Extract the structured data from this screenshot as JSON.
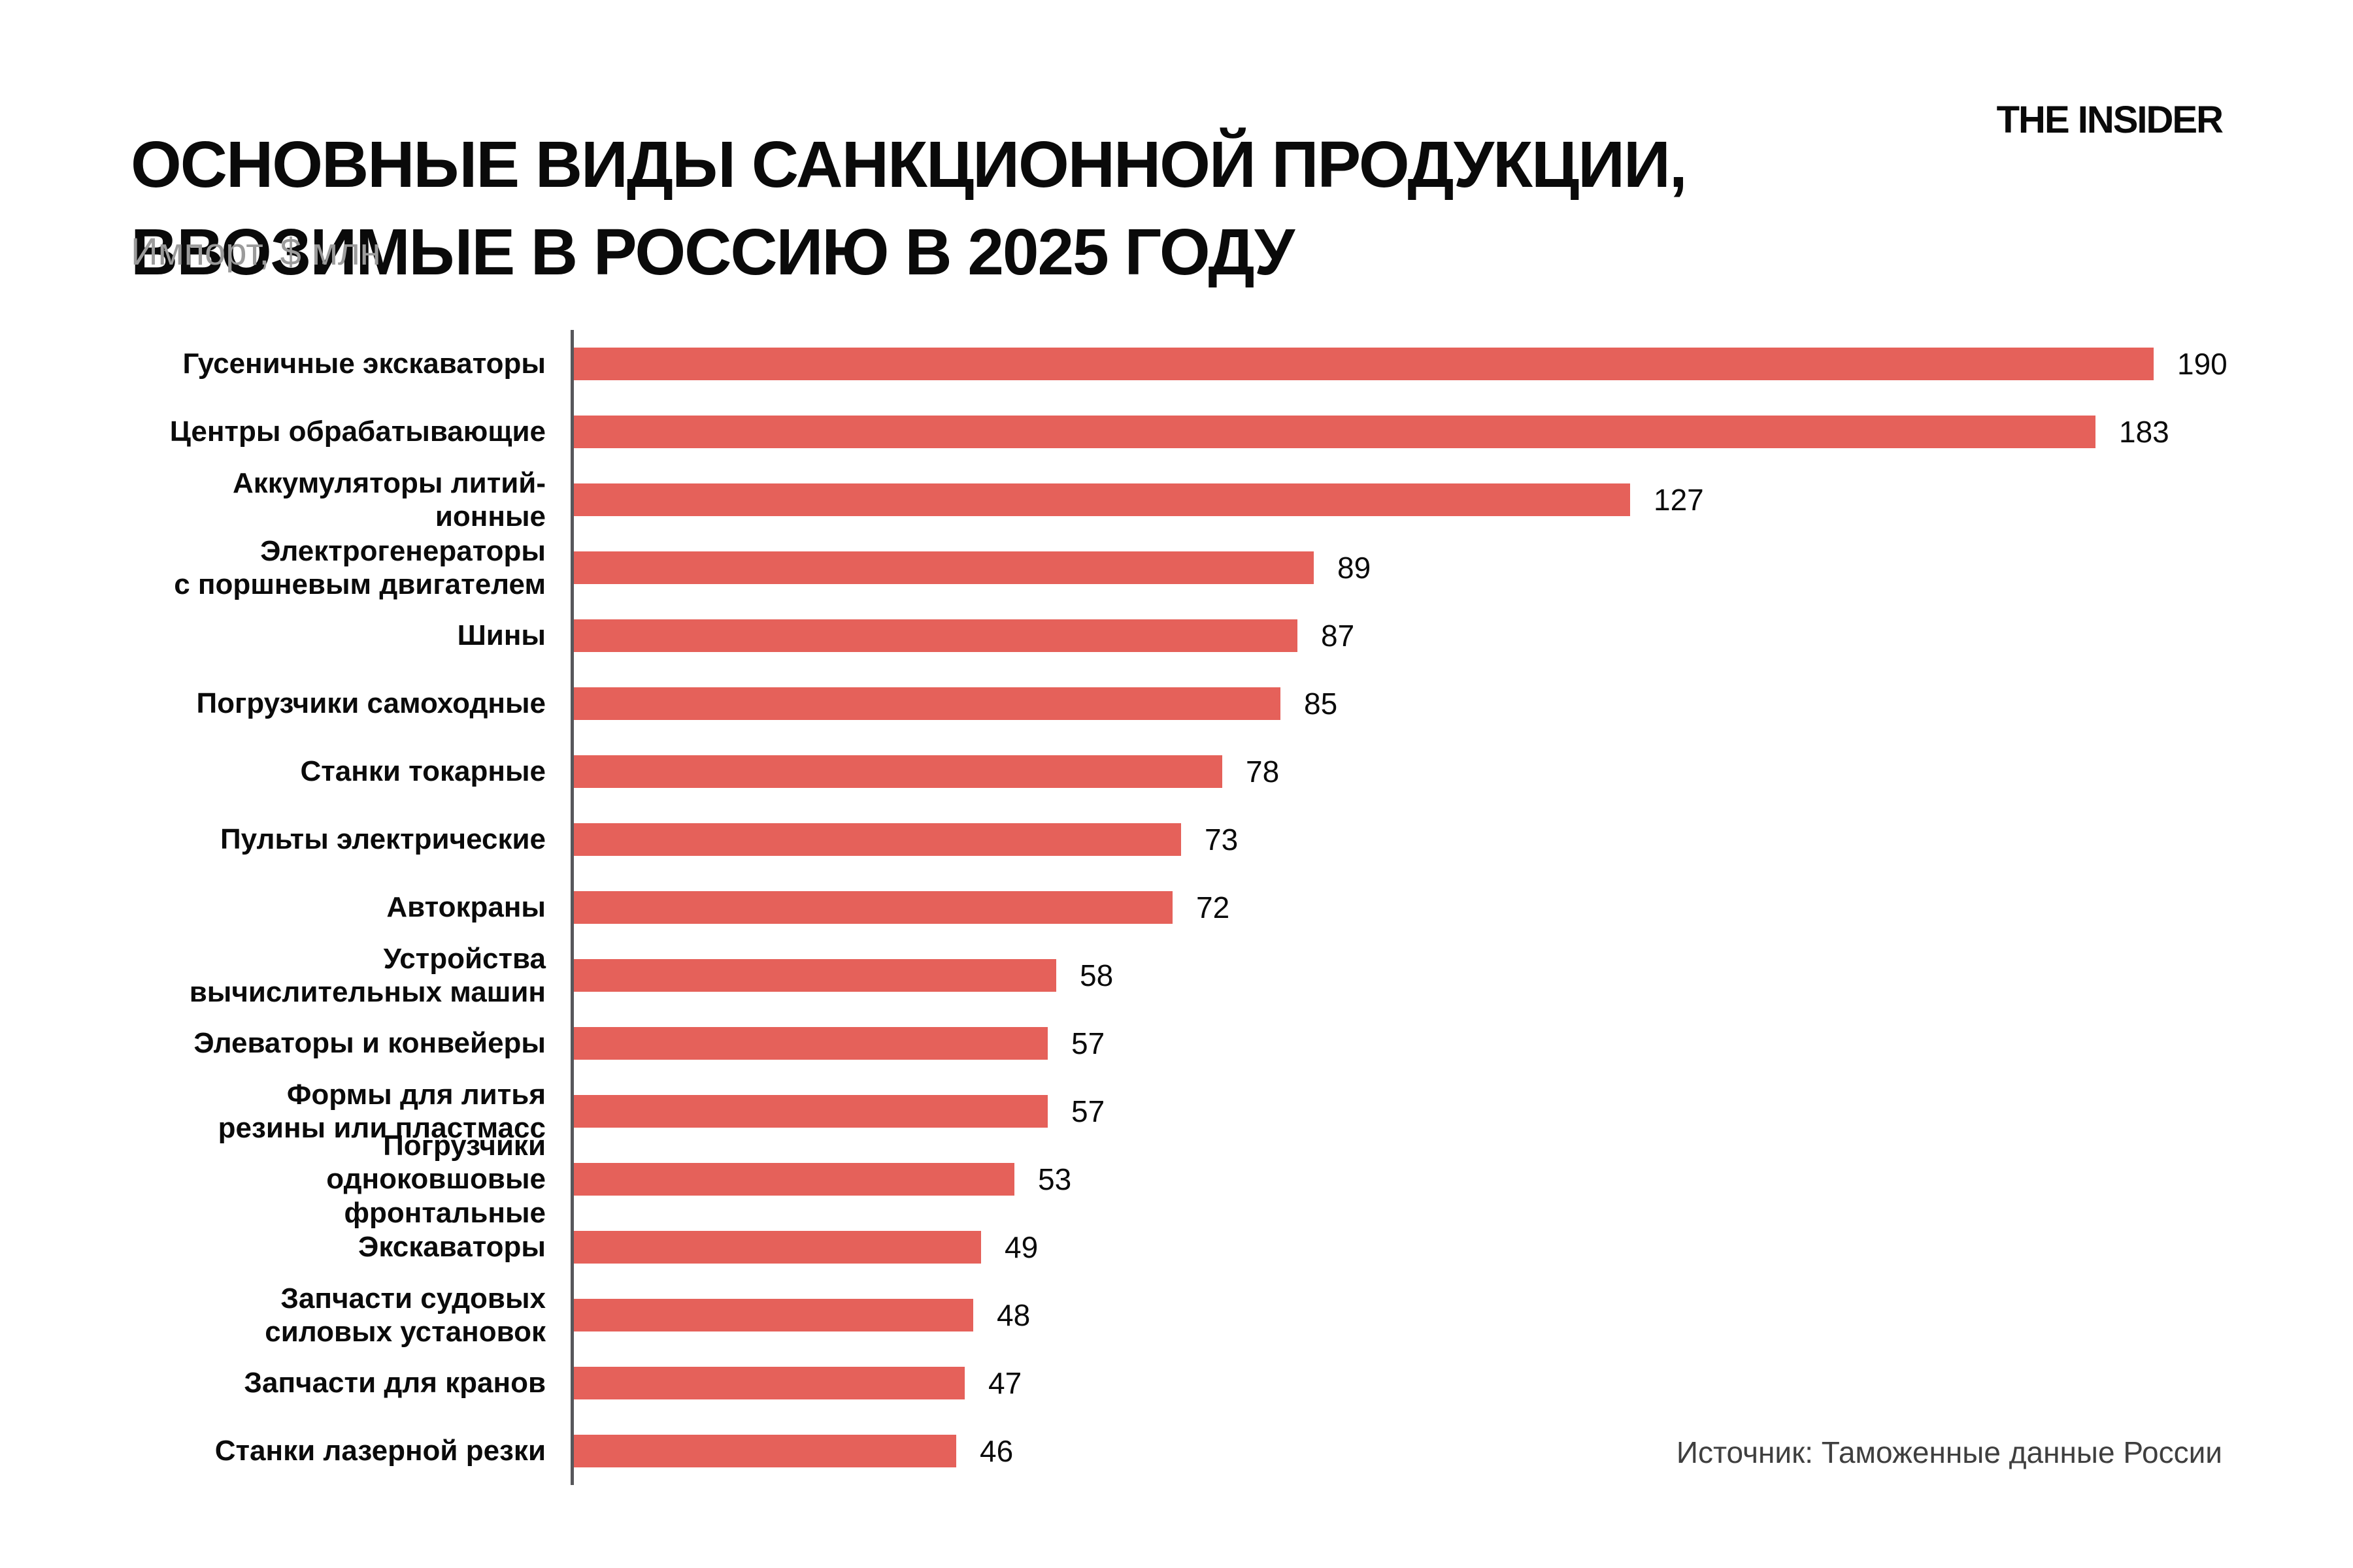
{
  "header": {
    "title_line1": "ОСНОВНЫЕ ВИДЫ САНКЦИОННОЙ ПРОДУКЦИИ,",
    "title_line2": "ВВОЗИМЫЕ В РОССИЮ В 2025 ГОДУ",
    "subtitle": "Импорт, $ млн",
    "logo": "THE INSIDER"
  },
  "footer": {
    "source": "Источник: Таможенные данные России"
  },
  "chart_data": {
    "type": "bar",
    "orientation": "horizontal",
    "title": "ОСНОВНЫЕ ВИДЫ САНКЦИОННОЙ ПРОДУКЦИИ, ВВОЗИМЫЕ В РОССИЮ В 2025 ГОДУ",
    "unit_label": "Импорт, $ млн",
    "xlim": [
      0,
      190
    ],
    "grid": false,
    "legend": false,
    "bar_color": "#e5615a",
    "axis_color": "#57575b",
    "categories": [
      "Гусеничные экскаваторы",
      "Центры обрабатывающие",
      "Аккумуляторы литий-ионные",
      "Электрогенераторы\nс поршневым двигателем",
      "Шины",
      "Погрузчики самоходные",
      "Станки токарные",
      "Пульты электрические",
      "Автокраны",
      "Устройства\nвычислительных машин",
      "Элеваторы и конвейеры",
      "Формы для литья\nрезины или пластмасс",
      "Погрузчики\nодноковшовые фронтальные",
      "Экскаваторы",
      "Запчасти судовых\nсиловых установок",
      "Запчасти для кранов",
      "Станки лазерной резки"
    ],
    "values": [
      190,
      183,
      127,
      89,
      87,
      85,
      78,
      73,
      72,
      58,
      57,
      57,
      53,
      49,
      48,
      47,
      46
    ]
  }
}
